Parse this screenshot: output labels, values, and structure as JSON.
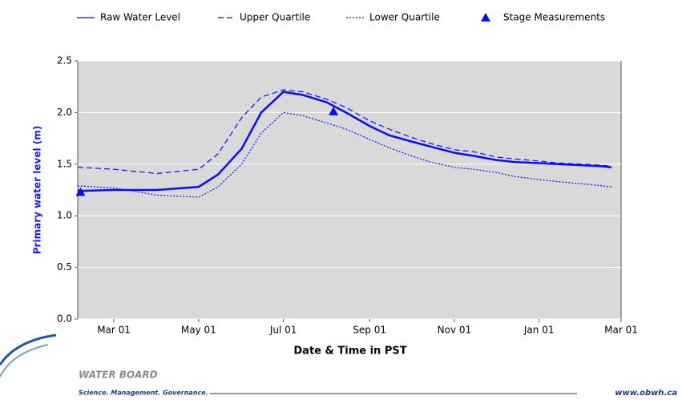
{
  "chart_data": {
    "type": "line",
    "y_label": "Primary water level (m)",
    "x_label": "Date & Time in PST",
    "x": [
      "Feb 03",
      "Mar 01",
      "Apr 01",
      "May 01",
      "May 15",
      "Jun 01",
      "Jun 15",
      "Jul 01",
      "Jul 15",
      "Aug 01",
      "Aug 15",
      "Sep 01",
      "Sep 15",
      "Oct 01",
      "Oct 15",
      "Nov 01",
      "Nov 15",
      "Dec 01",
      "Dec 15",
      "Jan 01",
      "Jan 15",
      "Feb 01",
      "Feb 15",
      "Feb 22"
    ],
    "series": [
      {
        "name": "Raw Water Level",
        "color": "#0a0aff",
        "style": "solid",
        "values": [
          1.24,
          1.25,
          1.25,
          1.28,
          1.4,
          1.65,
          2.0,
          2.2,
          2.17,
          2.1,
          2.0,
          1.87,
          1.78,
          1.72,
          1.67,
          1.61,
          1.58,
          1.54,
          1.52,
          1.51,
          1.5,
          1.49,
          1.48,
          1.47
        ]
      },
      {
        "name": "Upper Quartile",
        "color": "#0a0aff",
        "style": "dashed",
        "values": [
          1.47,
          1.45,
          1.41,
          1.45,
          1.6,
          1.95,
          2.15,
          2.22,
          2.2,
          2.13,
          2.05,
          1.92,
          1.84,
          1.76,
          1.7,
          1.64,
          1.62,
          1.57,
          1.55,
          1.53,
          1.51,
          1.5,
          1.49,
          1.48
        ]
      },
      {
        "name": "Lower Quartile",
        "color": "#0a0aff",
        "style": "dotted",
        "values": [
          1.29,
          1.27,
          1.2,
          1.18,
          1.28,
          1.5,
          1.8,
          2.0,
          1.97,
          1.9,
          1.84,
          1.74,
          1.66,
          1.58,
          1.52,
          1.47,
          1.45,
          1.42,
          1.38,
          1.35,
          1.33,
          1.31,
          1.29,
          1.28
        ]
      }
    ],
    "stage_measurements": {
      "name": "Stage Measurements",
      "color": "#0a0aff",
      "x": [
        "Feb 05",
        "Aug 06"
      ],
      "values": [
        1.23,
        2.01
      ]
    },
    "xlim": [
      "Feb 03",
      "Mar 01"
    ],
    "xticks": [
      "Mar 01",
      "May 01",
      "Jul 01",
      "Sep 01",
      "Nov 01",
      "Jan 01",
      "Mar 01"
    ],
    "ylim": [
      0,
      2.5
    ],
    "yticks": [
      {
        "value": 0,
        "label": "0.0"
      },
      {
        "value": 0.5,
        "label": "0.5"
      },
      {
        "value": 1,
        "label": "1.0"
      },
      {
        "value": 1.5,
        "label": "1.5"
      },
      {
        "value": 2,
        "label": "2.0"
      },
      {
        "value": 2.5,
        "label": "2.5"
      }
    ],
    "grid": true
  },
  "footer": {
    "org": "WATER BOARD",
    "tagline": "Science. Management. Governance.",
    "url": "www.obwh.ca"
  }
}
